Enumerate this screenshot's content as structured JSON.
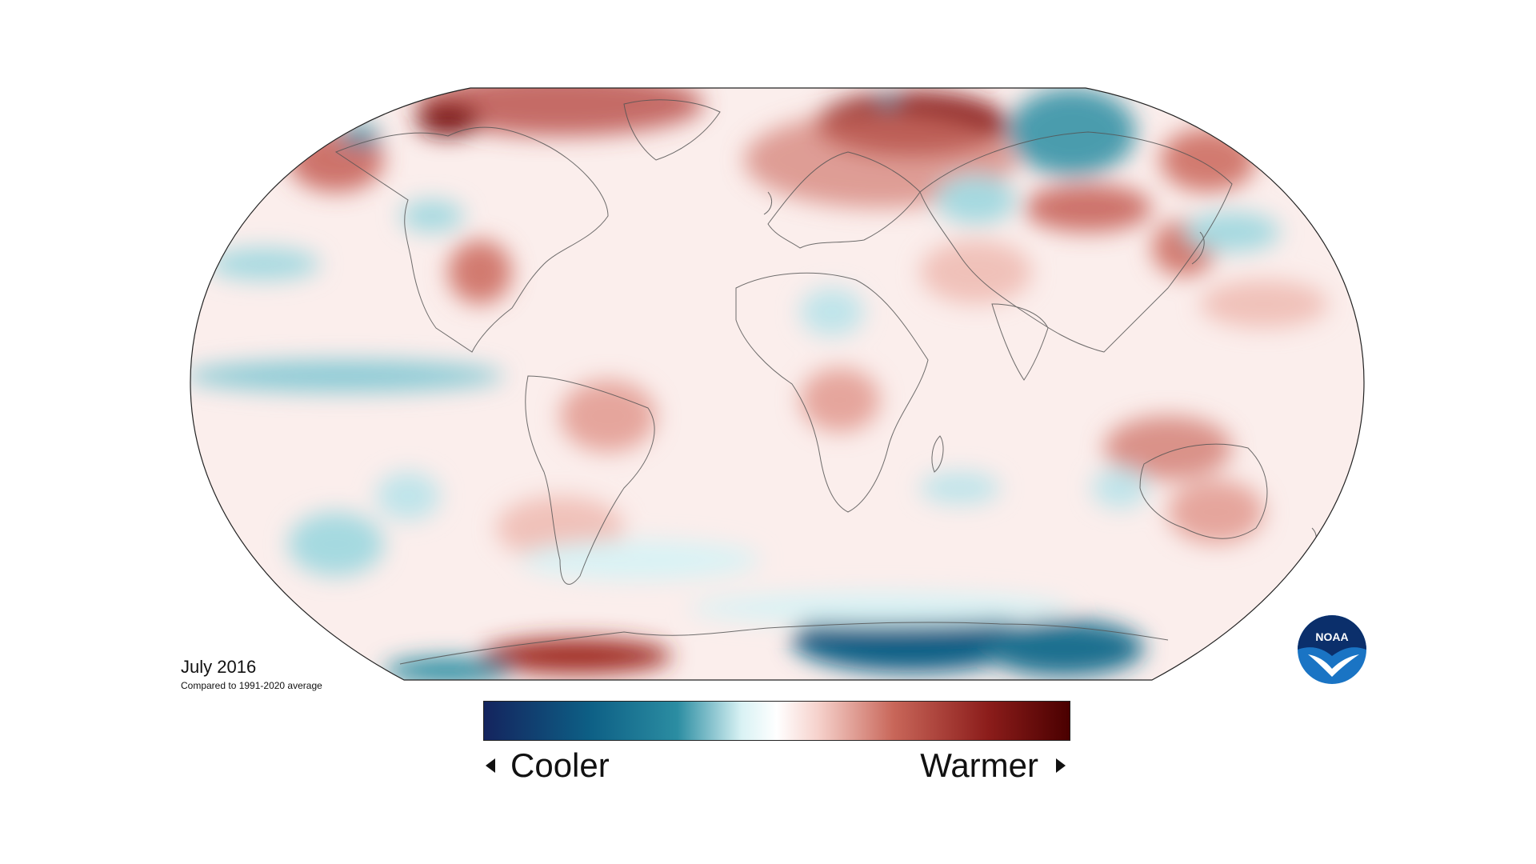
{
  "caption": {
    "title": "July 2016",
    "subtitle": "Compared to 1991-2020 average"
  },
  "legend": {
    "cooler_label": "Cooler",
    "warmer_label": "Warmer",
    "colors": [
      "#14245e",
      "#0d5f85",
      "#2b8da2",
      "#d9f2f4",
      "#ffffff",
      "#f6d2cc",
      "#c86659",
      "#8c1d1b",
      "#4a0000"
    ]
  },
  "logo": {
    "text": "NOAA",
    "icon": "noaa-logo-icon"
  },
  "colors": {
    "warm": "#c2544a",
    "cool": "#2b8da2",
    "coastline": "#555555",
    "map_border": "#222222"
  }
}
